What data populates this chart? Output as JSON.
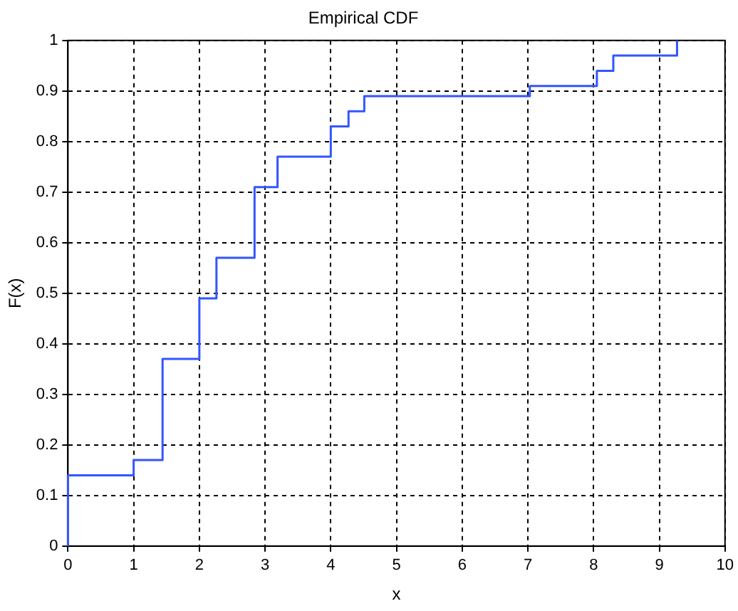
{
  "chart_data": {
    "type": "step",
    "title": "Empirical CDF",
    "xlabel": "x",
    "ylabel": "F(x)",
    "x": [
      0,
      0,
      1,
      1.44,
      2,
      2.26,
      2.84,
      3.19,
      4,
      4.27,
      4.51,
      7.03,
      8.05,
      8.3,
      9.27
    ],
    "series": [
      {
        "color": "#3355ff",
        "values": [
          0,
          0.14,
          0.17,
          0.37,
          0.49,
          0.57,
          0.71,
          0.77,
          0.83,
          0.86,
          0.89,
          0.91,
          0.94,
          0.97,
          1
        ]
      }
    ],
    "xlim": [
      0,
      10
    ],
    "xticks": [
      0,
      1,
      2,
      3,
      4,
      5,
      6,
      7,
      8,
      9,
      10
    ],
    "ylim": [
      0,
      1
    ],
    "yticks": [
      0,
      0.1,
      0.2,
      0.3,
      0.4,
      0.5,
      0.6,
      0.7,
      0.8,
      0.9,
      1
    ],
    "grid": true,
    "line_style": "solid",
    "marker": "none",
    "legend": false
  }
}
